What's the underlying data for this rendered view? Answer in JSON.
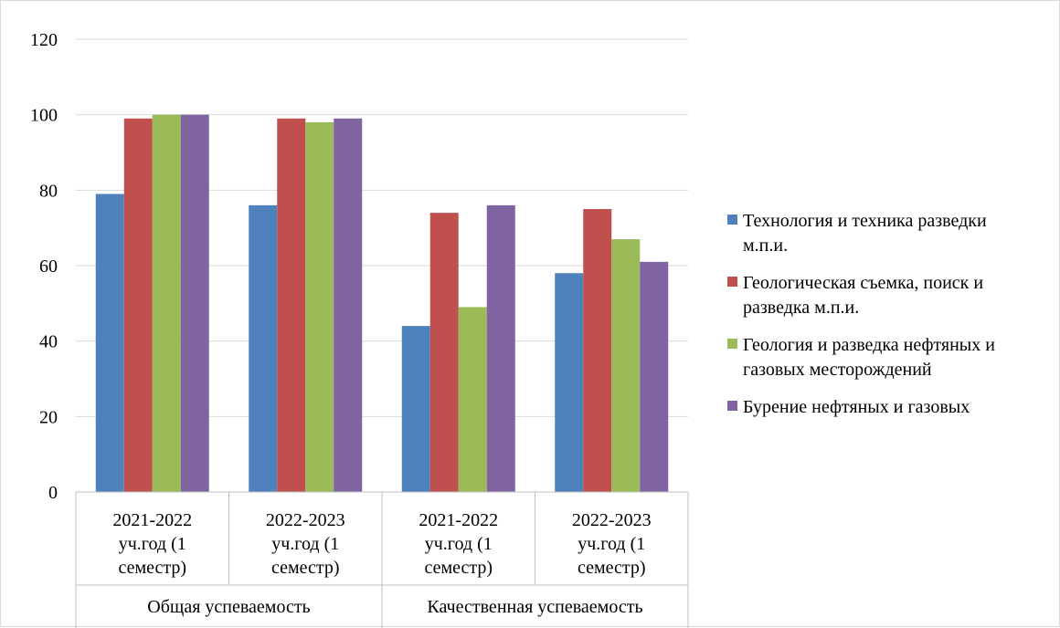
{
  "chart_data": {
    "type": "bar",
    "categories": [
      "2021-2022 уч.год (1 семестр)",
      "2022-2023 уч.год (1 семестр)",
      "2021-2022 уч.год (1 семестр)",
      "2022-2023 уч.год (1 семестр)"
    ],
    "category_lines": [
      [
        "2021-2022",
        "уч.год (1",
        "семестр)"
      ],
      [
        "2022-2023",
        "уч.год (1",
        "семестр)"
      ],
      [
        "2021-2022",
        "уч.год (1",
        "семестр)"
      ],
      [
        "2022-2023",
        "уч.год (1",
        "семестр)"
      ]
    ],
    "groups": [
      {
        "label": "Общая успеваемость",
        "categories": [
          0,
          1
        ]
      },
      {
        "label": "Качественная успеваемость",
        "categories": [
          2,
          3
        ]
      }
    ],
    "series": [
      {
        "name": "Технология и техника разведки м.п.и.",
        "name_lines": [
          "Технология и техника разведки",
          "м.п.и."
        ],
        "color": "#4f81bd",
        "values": [
          79,
          76,
          44,
          58
        ]
      },
      {
        "name": "Геологическая съемка, поиск и разведка м.п.и.",
        "name_lines": [
          "Геологическая съемка, поиск и",
          "разведка м.п.и."
        ],
        "color": "#c0504d",
        "values": [
          99,
          99,
          74,
          75
        ]
      },
      {
        "name": "Геология и разведка нефтяных и газовых месторождений",
        "name_lines": [
          "Геология и разведка нефтяных и",
          "газовых месторождений"
        ],
        "color": "#9bbb59",
        "values": [
          100,
          98,
          49,
          67
        ]
      },
      {
        "name": "Бурение нефтяных и газовых",
        "name_lines": [
          "Бурение нефтяных и газовых"
        ],
        "color": "#8064a2",
        "values": [
          100,
          99,
          76,
          61
        ]
      }
    ],
    "yticks": [
      0,
      20,
      40,
      60,
      80,
      100,
      120
    ],
    "ylim": [
      0,
      120
    ],
    "grid": true,
    "legend_position": "right"
  }
}
